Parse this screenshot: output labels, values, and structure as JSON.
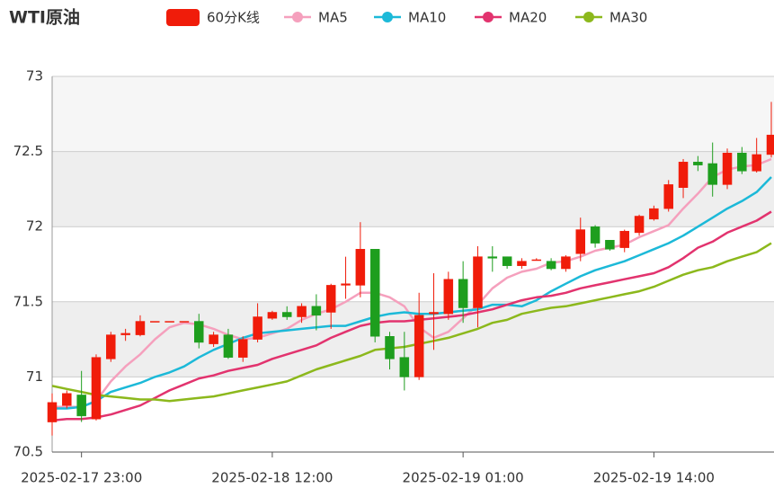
{
  "chart_data": {
    "type": "candlestick",
    "title": "WTI原油",
    "categories": [
      null,
      null,
      "2025-02-17 23:00",
      null,
      null,
      null,
      null,
      null,
      null,
      null,
      null,
      null,
      null,
      null,
      null,
      "2025-02-18 12:00",
      null,
      null,
      null,
      null,
      null,
      null,
      null,
      null,
      null,
      null,
      null,
      null,
      "2025-02-19 01:00",
      null,
      null,
      null,
      null,
      null,
      null,
      null,
      null,
      null,
      null,
      null,
      null,
      "2025-02-19 14:00",
      null,
      null,
      null,
      null,
      null,
      null,
      null,
      null
    ],
    "ylim": [
      70.5,
      73
    ],
    "yticks": [
      70.5,
      71,
      71.5,
      72,
      72.5,
      73
    ],
    "split_area": [
      "#ffffff",
      "#eeeeee",
      "#ffffff",
      "#eeeeee",
      "#f6f6f6"
    ],
    "series": [
      {
        "name": "60分K线",
        "type": "candlestick",
        "color": "#f01c0a",
        "up_color": "#f01c0a",
        "down_color": "#1e9e1e",
        "open": [
          70.7,
          70.81,
          70.88,
          70.72,
          71.12,
          71.28,
          71.28,
          71.37,
          71.37,
          71.37,
          71.37,
          71.22,
          71.28,
          71.13,
          71.25,
          71.39,
          71.43,
          71.4,
          71.47,
          71.43,
          71.61,
          71.61,
          71.85,
          71.27,
          71.13,
          71.0,
          71.42,
          71.42,
          71.65,
          71.46,
          71.8,
          71.8,
          71.74,
          71.775,
          71.77,
          71.72,
          71.82,
          72.0,
          71.91,
          71.86,
          71.96,
          72.05,
          72.12,
          72.26,
          72.43,
          72.42,
          72.28,
          72.49,
          72.37,
          72.48
        ],
        "high": [
          70.89,
          70.91,
          71.04,
          71.15,
          71.3,
          71.32,
          71.41,
          71.37,
          71.37,
          71.37,
          71.42,
          71.3,
          71.32,
          71.27,
          71.49,
          71.44,
          71.47,
          71.49,
          71.55,
          71.62,
          71.8,
          72.03,
          71.85,
          71.3,
          71.3,
          71.56,
          71.69,
          71.7,
          71.77,
          71.87,
          71.87,
          71.8,
          71.79,
          71.79,
          71.79,
          71.81,
          72.06,
          72.01,
          71.91,
          71.98,
          72.08,
          72.14,
          72.31,
          72.45,
          72.47,
          72.56,
          72.52,
          72.53,
          72.59,
          72.83
        ],
        "low": [
          70.61,
          70.79,
          70.7,
          70.71,
          71.1,
          71.24,
          71.27,
          71.37,
          71.37,
          71.37,
          71.19,
          71.2,
          71.12,
          71.1,
          71.23,
          71.38,
          71.38,
          71.36,
          71.31,
          71.32,
          71.52,
          71.53,
          71.23,
          71.05,
          70.91,
          70.98,
          71.18,
          71.38,
          71.36,
          71.33,
          71.7,
          71.72,
          71.72,
          71.775,
          71.71,
          71.7,
          71.77,
          71.86,
          71.84,
          71.83,
          71.94,
          72.04,
          72.1,
          72.19,
          72.37,
          72.2,
          72.25,
          72.35,
          72.36,
          72.46
        ],
        "close": [
          70.83,
          70.89,
          70.74,
          71.13,
          71.28,
          71.29,
          71.37,
          71.37,
          71.37,
          71.37,
          71.23,
          71.28,
          71.13,
          71.25,
          71.4,
          71.43,
          71.4,
          71.47,
          71.41,
          71.61,
          71.62,
          71.85,
          71.27,
          71.12,
          71.0,
          71.41,
          71.43,
          71.65,
          71.46,
          71.8,
          71.79,
          71.74,
          71.77,
          71.78,
          71.72,
          71.8,
          71.98,
          71.89,
          71.85,
          71.97,
          72.07,
          72.12,
          72.28,
          72.43,
          72.41,
          72.28,
          72.49,
          72.37,
          72.48,
          72.61
        ]
      },
      {
        "name": "MA5",
        "type": "line",
        "color": "#f5a0bd",
        "values": [
          70.8,
          70.8,
          70.8,
          70.84,
          70.97,
          71.07,
          71.15,
          71.25,
          71.33,
          71.36,
          71.35,
          71.32,
          71.28,
          71.25,
          71.26,
          71.29,
          71.32,
          71.38,
          71.42,
          71.45,
          71.5,
          71.56,
          71.56,
          71.53,
          71.47,
          71.33,
          71.26,
          71.3,
          71.39,
          71.48,
          71.59,
          71.66,
          71.7,
          71.72,
          71.76,
          71.77,
          71.8,
          71.84,
          71.86,
          71.88,
          71.93,
          71.97,
          72.01,
          72.12,
          72.22,
          72.33,
          72.38,
          72.4,
          72.41,
          72.45
        ]
      },
      {
        "name": "MA10",
        "type": "line",
        "color": "#1cb9d8",
        "values": [
          70.79,
          70.79,
          70.8,
          70.84,
          70.9,
          70.93,
          70.96,
          71.0,
          71.03,
          71.07,
          71.13,
          71.18,
          71.22,
          71.26,
          71.29,
          71.3,
          71.31,
          71.32,
          71.33,
          71.34,
          71.34,
          71.37,
          71.4,
          71.42,
          71.43,
          71.42,
          71.42,
          71.43,
          71.44,
          71.45,
          71.48,
          71.48,
          71.47,
          71.51,
          71.57,
          71.62,
          71.67,
          71.71,
          71.74,
          71.77,
          71.81,
          71.85,
          71.89,
          71.94,
          72.0,
          72.06,
          72.12,
          72.17,
          72.23,
          72.33
        ]
      },
      {
        "name": "MA20",
        "type": "line",
        "color": "#e2336e",
        "values": [
          70.71,
          70.72,
          70.72,
          70.73,
          70.75,
          70.78,
          70.81,
          70.86,
          70.91,
          70.95,
          70.99,
          71.01,
          71.04,
          71.06,
          71.08,
          71.12,
          71.15,
          71.18,
          71.21,
          71.26,
          71.3,
          71.34,
          71.36,
          71.37,
          71.37,
          71.38,
          71.39,
          71.4,
          71.41,
          71.43,
          71.45,
          71.48,
          71.51,
          71.53,
          71.54,
          71.56,
          71.59,
          71.61,
          71.63,
          71.65,
          71.67,
          71.69,
          71.73,
          71.79,
          71.86,
          71.9,
          71.96,
          72.0,
          72.04,
          72.1
        ]
      },
      {
        "name": "MA30",
        "type": "line",
        "color": "#8cb81c",
        "values": [
          70.94,
          70.92,
          70.9,
          70.88,
          70.87,
          70.86,
          70.85,
          70.85,
          70.84,
          70.85,
          70.86,
          70.87,
          70.89,
          70.91,
          70.93,
          70.95,
          70.97,
          71.01,
          71.05,
          71.08,
          71.11,
          71.14,
          71.18,
          71.19,
          71.2,
          71.22,
          71.24,
          71.26,
          71.29,
          71.32,
          71.36,
          71.38,
          71.42,
          71.44,
          71.46,
          71.47,
          71.49,
          71.51,
          71.53,
          71.55,
          71.57,
          71.6,
          71.64,
          71.68,
          71.71,
          71.73,
          71.77,
          71.8,
          71.83,
          71.89
        ]
      }
    ]
  }
}
